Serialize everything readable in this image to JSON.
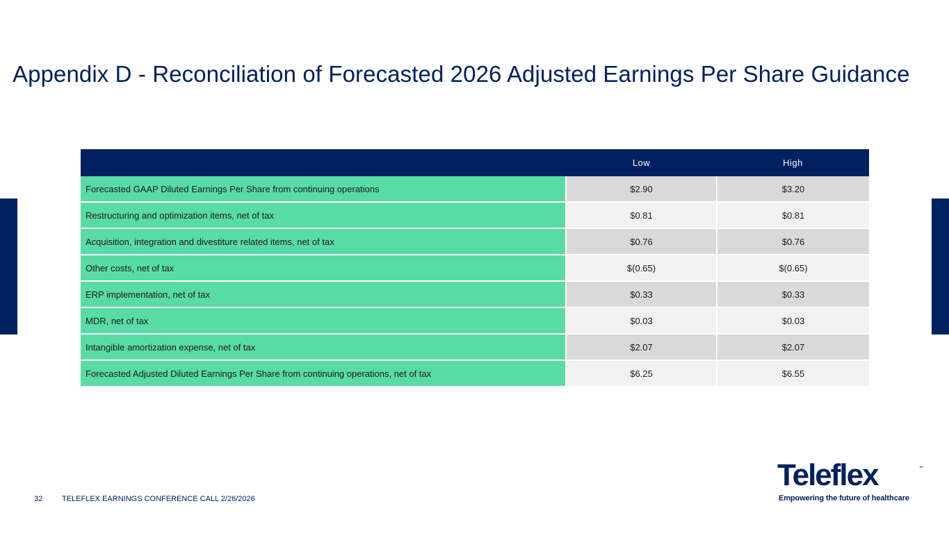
{
  "slide": {
    "title": "Appendix D - Reconciliation of Forecasted 2026 Adjusted Earnings Per Share Guidance",
    "page_number": "32",
    "footer_text": "TELEFLEX EARNINGS CONFERENCE CALL 2/26/2026"
  },
  "table": {
    "headers": {
      "label": "",
      "low": "Low",
      "high": "High"
    },
    "rows": [
      {
        "label": "Forecasted GAAP Diluted Earnings Per Share from continuing operations",
        "low": "$2.90",
        "high": "$3.20"
      },
      {
        "label": "Restructuring and optimization items, net of tax",
        "low": "$0.81",
        "high": "$0.81"
      },
      {
        "label": "Acquisition, integration and divestiture related items, net of tax",
        "low": "$0.76",
        "high": "$0.76"
      },
      {
        "label": "Other costs, net of tax",
        "low": "$(0.65)",
        "high": "$(0.65)"
      },
      {
        "label": "ERP implementation, net of tax",
        "low": "$0.33",
        "high": "$0.33"
      },
      {
        "label": "MDR, net of tax",
        "low": "$0.03",
        "high": "$0.03"
      },
      {
        "label": "Intangible amortization expense, net of tax",
        "low": "$2.07",
        "high": "$2.07"
      },
      {
        "label": "Forecasted Adjusted Diluted Earnings Per Share from continuing operations, net of tax",
        "low": "$6.25",
        "high": "$6.55"
      }
    ]
  },
  "logo": {
    "wordmark": "Teleflex",
    "trademark": "™",
    "tagline": "Empowering the future of healthcare"
  },
  "colors": {
    "navy": "#002060",
    "label_green": "#59dba6",
    "row_gray_dark": "#d9d9d9",
    "row_gray_light": "#f2f2f2"
  }
}
